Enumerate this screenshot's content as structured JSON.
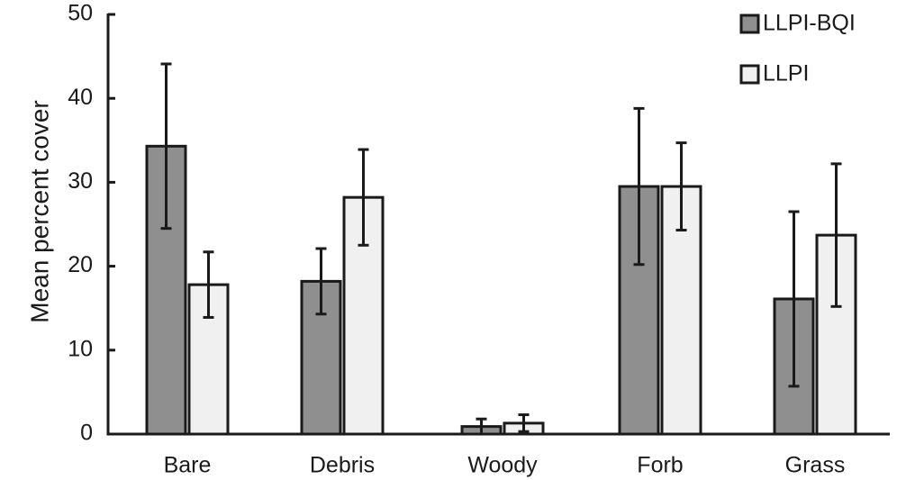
{
  "chart_data": {
    "type": "bar",
    "title": "",
    "xlabel": "",
    "ylabel": "Mean percent cover",
    "ylim": [
      0,
      50
    ],
    "yticks": [
      0,
      10,
      20,
      30,
      40,
      50
    ],
    "categories": [
      "Bare",
      "Debris",
      "Woody",
      "Forb",
      "Grass"
    ],
    "legend_position": "top-right",
    "grid": false,
    "series": [
      {
        "name": "LLPI-BQI",
        "color": "#8f8f8f",
        "values": [
          34.3,
          18.2,
          0.9,
          29.5,
          16.1
        ],
        "error": [
          9.8,
          3.9,
          0.9,
          9.3,
          10.4
        ]
      },
      {
        "name": "LLPI",
        "color": "#f0f0f0",
        "values": [
          17.8,
          28.2,
          1.3,
          29.5,
          23.7
        ],
        "error": [
          3.9,
          5.7,
          1.0,
          5.2,
          8.5
        ]
      }
    ]
  }
}
